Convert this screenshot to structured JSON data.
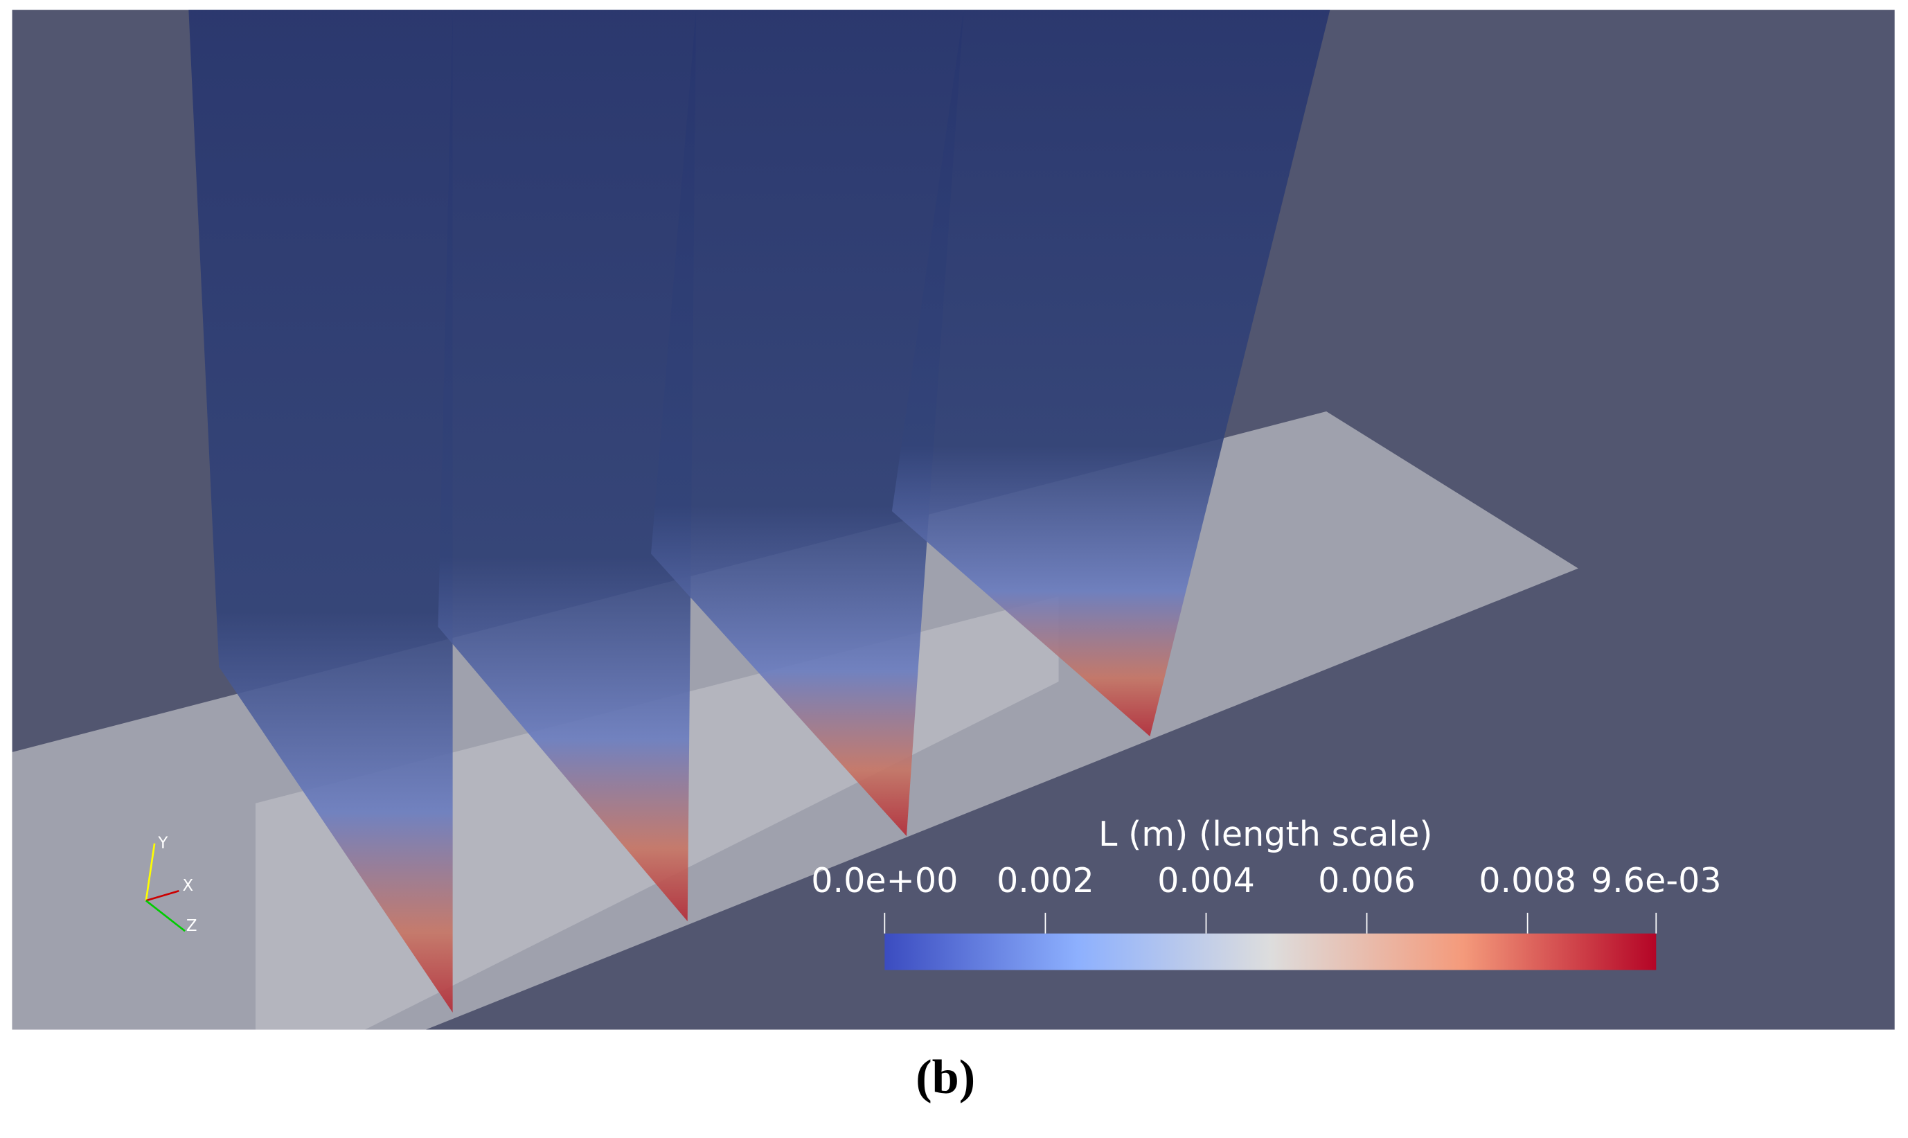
{
  "colorbar": {
    "title": "L (m) (length scale)",
    "range": [
      0,
      0.0096
    ],
    "ticks": [
      {
        "value": 0,
        "label": "0.0e+00"
      },
      0.002,
      0.004,
      0.006,
      0.008,
      {
        "value": 0.0096,
        "label": "9.6e-03"
      }
    ]
  },
  "orientation_axes": {
    "y": "Y",
    "x": "X",
    "z": "Z"
  },
  "caption": "(b)"
}
